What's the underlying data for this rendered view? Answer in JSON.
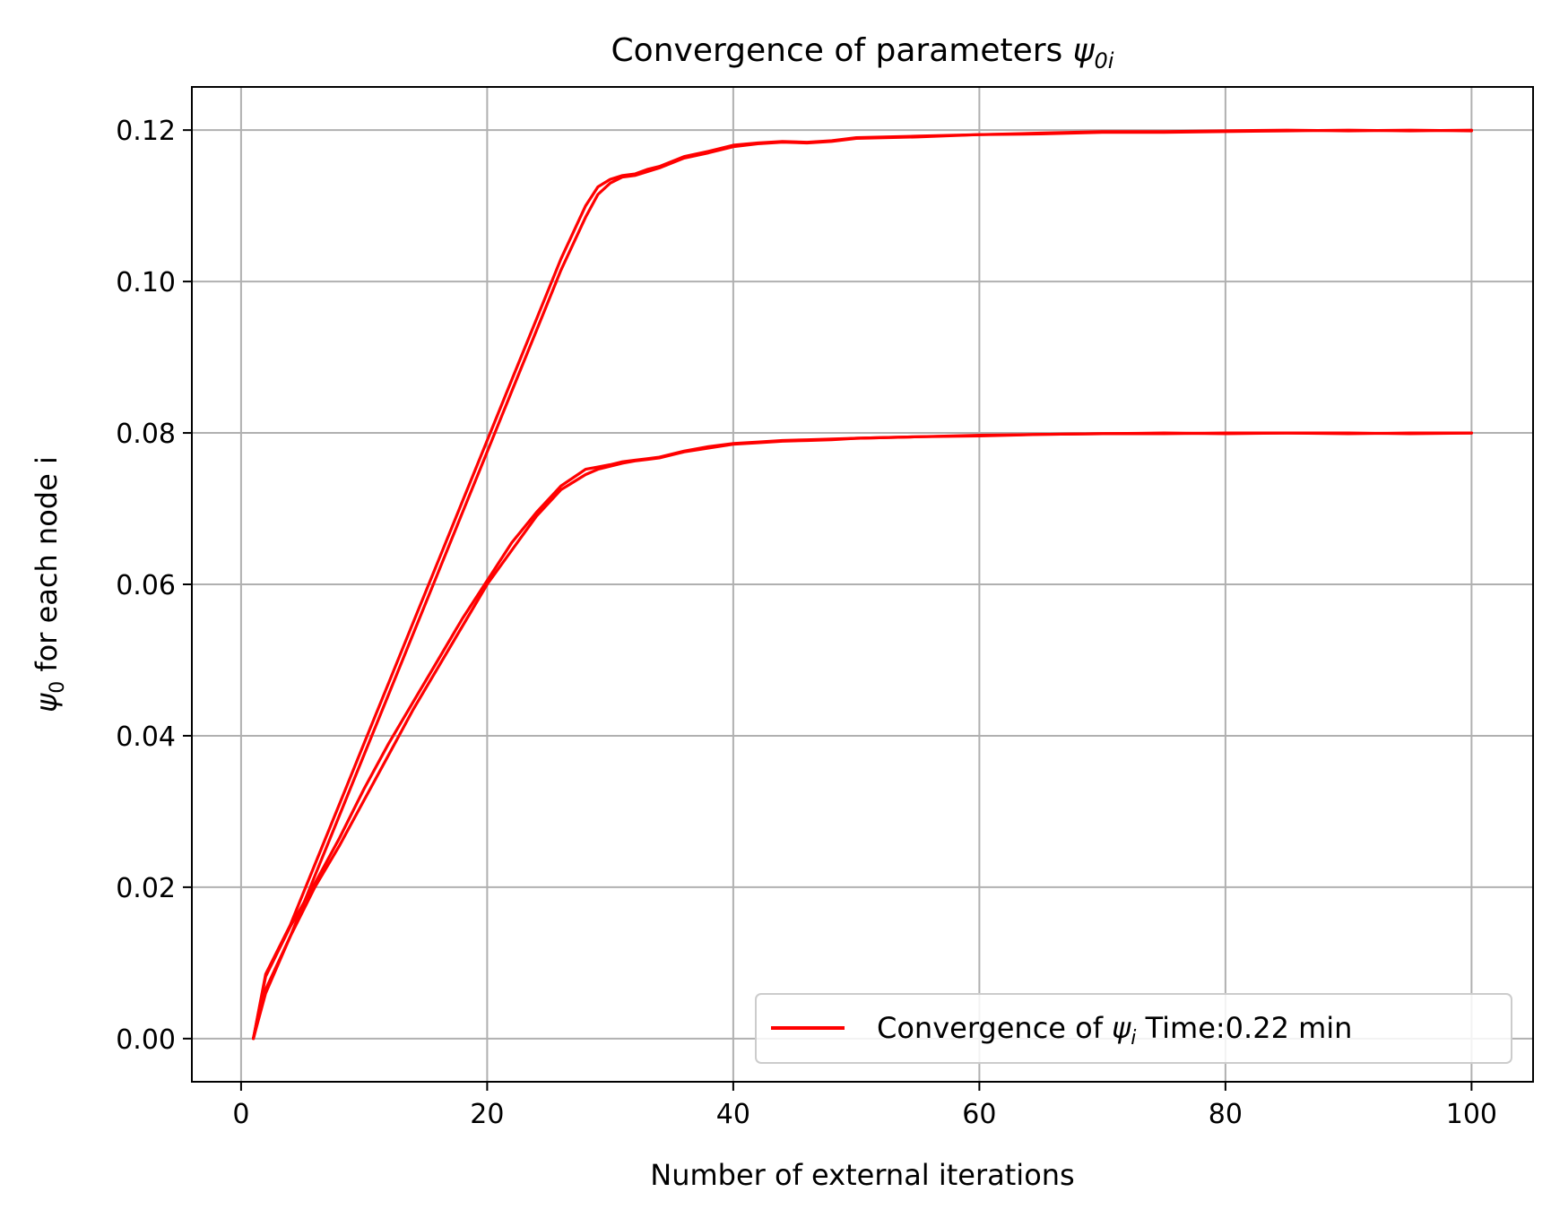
{
  "chart_data": {
    "type": "line",
    "title": {
      "prefix": "Convergence of parameters ",
      "symbol": "ψ",
      "subscript": "0i"
    },
    "xlabel": "Number of external iterations",
    "ylabel": {
      "symbol": "ψ",
      "subscript": "0",
      "suffix": " for each node i"
    },
    "xlim": [
      -4,
      105
    ],
    "ylim": [
      -0.0057,
      0.1257
    ],
    "xticks": [
      0,
      20,
      40,
      60,
      80,
      100
    ],
    "xtick_labels": [
      "0",
      "20",
      "40",
      "60",
      "80",
      "100"
    ],
    "yticks": [
      0.0,
      0.02,
      0.04,
      0.06,
      0.08,
      0.1,
      0.12
    ],
    "ytick_labels": [
      "0.00",
      "0.02",
      "0.04",
      "0.06",
      "0.08",
      "0.10",
      "0.12"
    ],
    "grid": true,
    "legend": {
      "position": "lower-right",
      "prefix": "Convergence of ",
      "symbol": "ψ",
      "subscript": "i",
      "suffix": " Time:0.22 min"
    },
    "line_color": "#ff0000",
    "series": [
      {
        "x": [
          1,
          2,
          4,
          6,
          8,
          10,
          12,
          14,
          16,
          18,
          20,
          22,
          24,
          26,
          28,
          29,
          30,
          31,
          32,
          33,
          34,
          36,
          38,
          40,
          42,
          44,
          46,
          48,
          50,
          55,
          60,
          65,
          70,
          75,
          80,
          85,
          90,
          95,
          100
        ],
        "y": [
          0.0,
          0.0085,
          0.015,
          0.023,
          0.031,
          0.039,
          0.047,
          0.055,
          0.063,
          0.071,
          0.079,
          0.087,
          0.095,
          0.103,
          0.11,
          0.1125,
          0.1135,
          0.114,
          0.1142,
          0.1148,
          0.1152,
          0.1165,
          0.1172,
          0.118,
          0.1183,
          0.1185,
          0.1184,
          0.1186,
          0.119,
          0.1192,
          0.1194,
          0.1195,
          0.1197,
          0.1197,
          0.1198,
          0.1199,
          0.12,
          0.1199,
          0.12
        ]
      },
      {
        "x": [
          1,
          2,
          4,
          6,
          8,
          10,
          12,
          14,
          16,
          18,
          20,
          22,
          24,
          26,
          28,
          29,
          30,
          31,
          32,
          33,
          34,
          36,
          38,
          40,
          42,
          44,
          46,
          48,
          50,
          55,
          60,
          65,
          70,
          75,
          80,
          85,
          90,
          95,
          100
        ],
        "y": [
          0.0,
          0.006,
          0.0135,
          0.0215,
          0.0295,
          0.0375,
          0.0455,
          0.0535,
          0.0615,
          0.0695,
          0.0775,
          0.0855,
          0.0935,
          0.1015,
          0.1085,
          0.1115,
          0.113,
          0.1138,
          0.114,
          0.1145,
          0.115,
          0.1163,
          0.117,
          0.1178,
          0.1182,
          0.1184,
          0.1183,
          0.1185,
          0.1189,
          0.1191,
          0.1194,
          0.1196,
          0.1198,
          0.1198,
          0.1199,
          0.12,
          0.1199,
          0.12,
          0.1199
        ]
      },
      {
        "x": [
          1,
          2,
          4,
          6,
          8,
          10,
          12,
          14,
          16,
          18,
          20,
          22,
          24,
          26,
          28,
          29,
          30,
          31,
          32,
          33,
          34,
          36,
          38,
          40,
          42,
          44,
          46,
          48,
          50,
          55,
          60,
          65,
          70,
          75,
          80,
          85,
          90,
          95,
          100
        ],
        "y": [
          0.0,
          0.0082,
          0.0148,
          0.0205,
          0.0265,
          0.033,
          0.039,
          0.0445,
          0.05,
          0.0555,
          0.0605,
          0.0655,
          0.0695,
          0.073,
          0.0752,
          0.0755,
          0.0758,
          0.0762,
          0.0764,
          0.0766,
          0.0768,
          0.0776,
          0.0782,
          0.0786,
          0.0788,
          0.079,
          0.0791,
          0.0792,
          0.0793,
          0.0795,
          0.0797,
          0.0798,
          0.0799,
          0.0799,
          0.08,
          0.08,
          0.0799,
          0.08,
          0.08
        ]
      },
      {
        "x": [
          1,
          2,
          4,
          6,
          8,
          10,
          12,
          14,
          16,
          18,
          20,
          22,
          24,
          26,
          28,
          29,
          30,
          31,
          32,
          33,
          34,
          36,
          38,
          40,
          42,
          44,
          46,
          48,
          50,
          55,
          60,
          65,
          70,
          75,
          80,
          85,
          90,
          95,
          100
        ],
        "y": [
          0.0,
          0.0065,
          0.0135,
          0.02,
          0.0255,
          0.0315,
          0.0375,
          0.0435,
          0.049,
          0.0545,
          0.06,
          0.0645,
          0.069,
          0.0725,
          0.0745,
          0.0752,
          0.0756,
          0.076,
          0.0763,
          0.0765,
          0.0767,
          0.0775,
          0.078,
          0.0785,
          0.0787,
          0.0789,
          0.079,
          0.0791,
          0.0793,
          0.0795,
          0.0796,
          0.0798,
          0.0799,
          0.08,
          0.0799,
          0.08,
          0.08,
          0.0799,
          0.08
        ]
      }
    ]
  }
}
